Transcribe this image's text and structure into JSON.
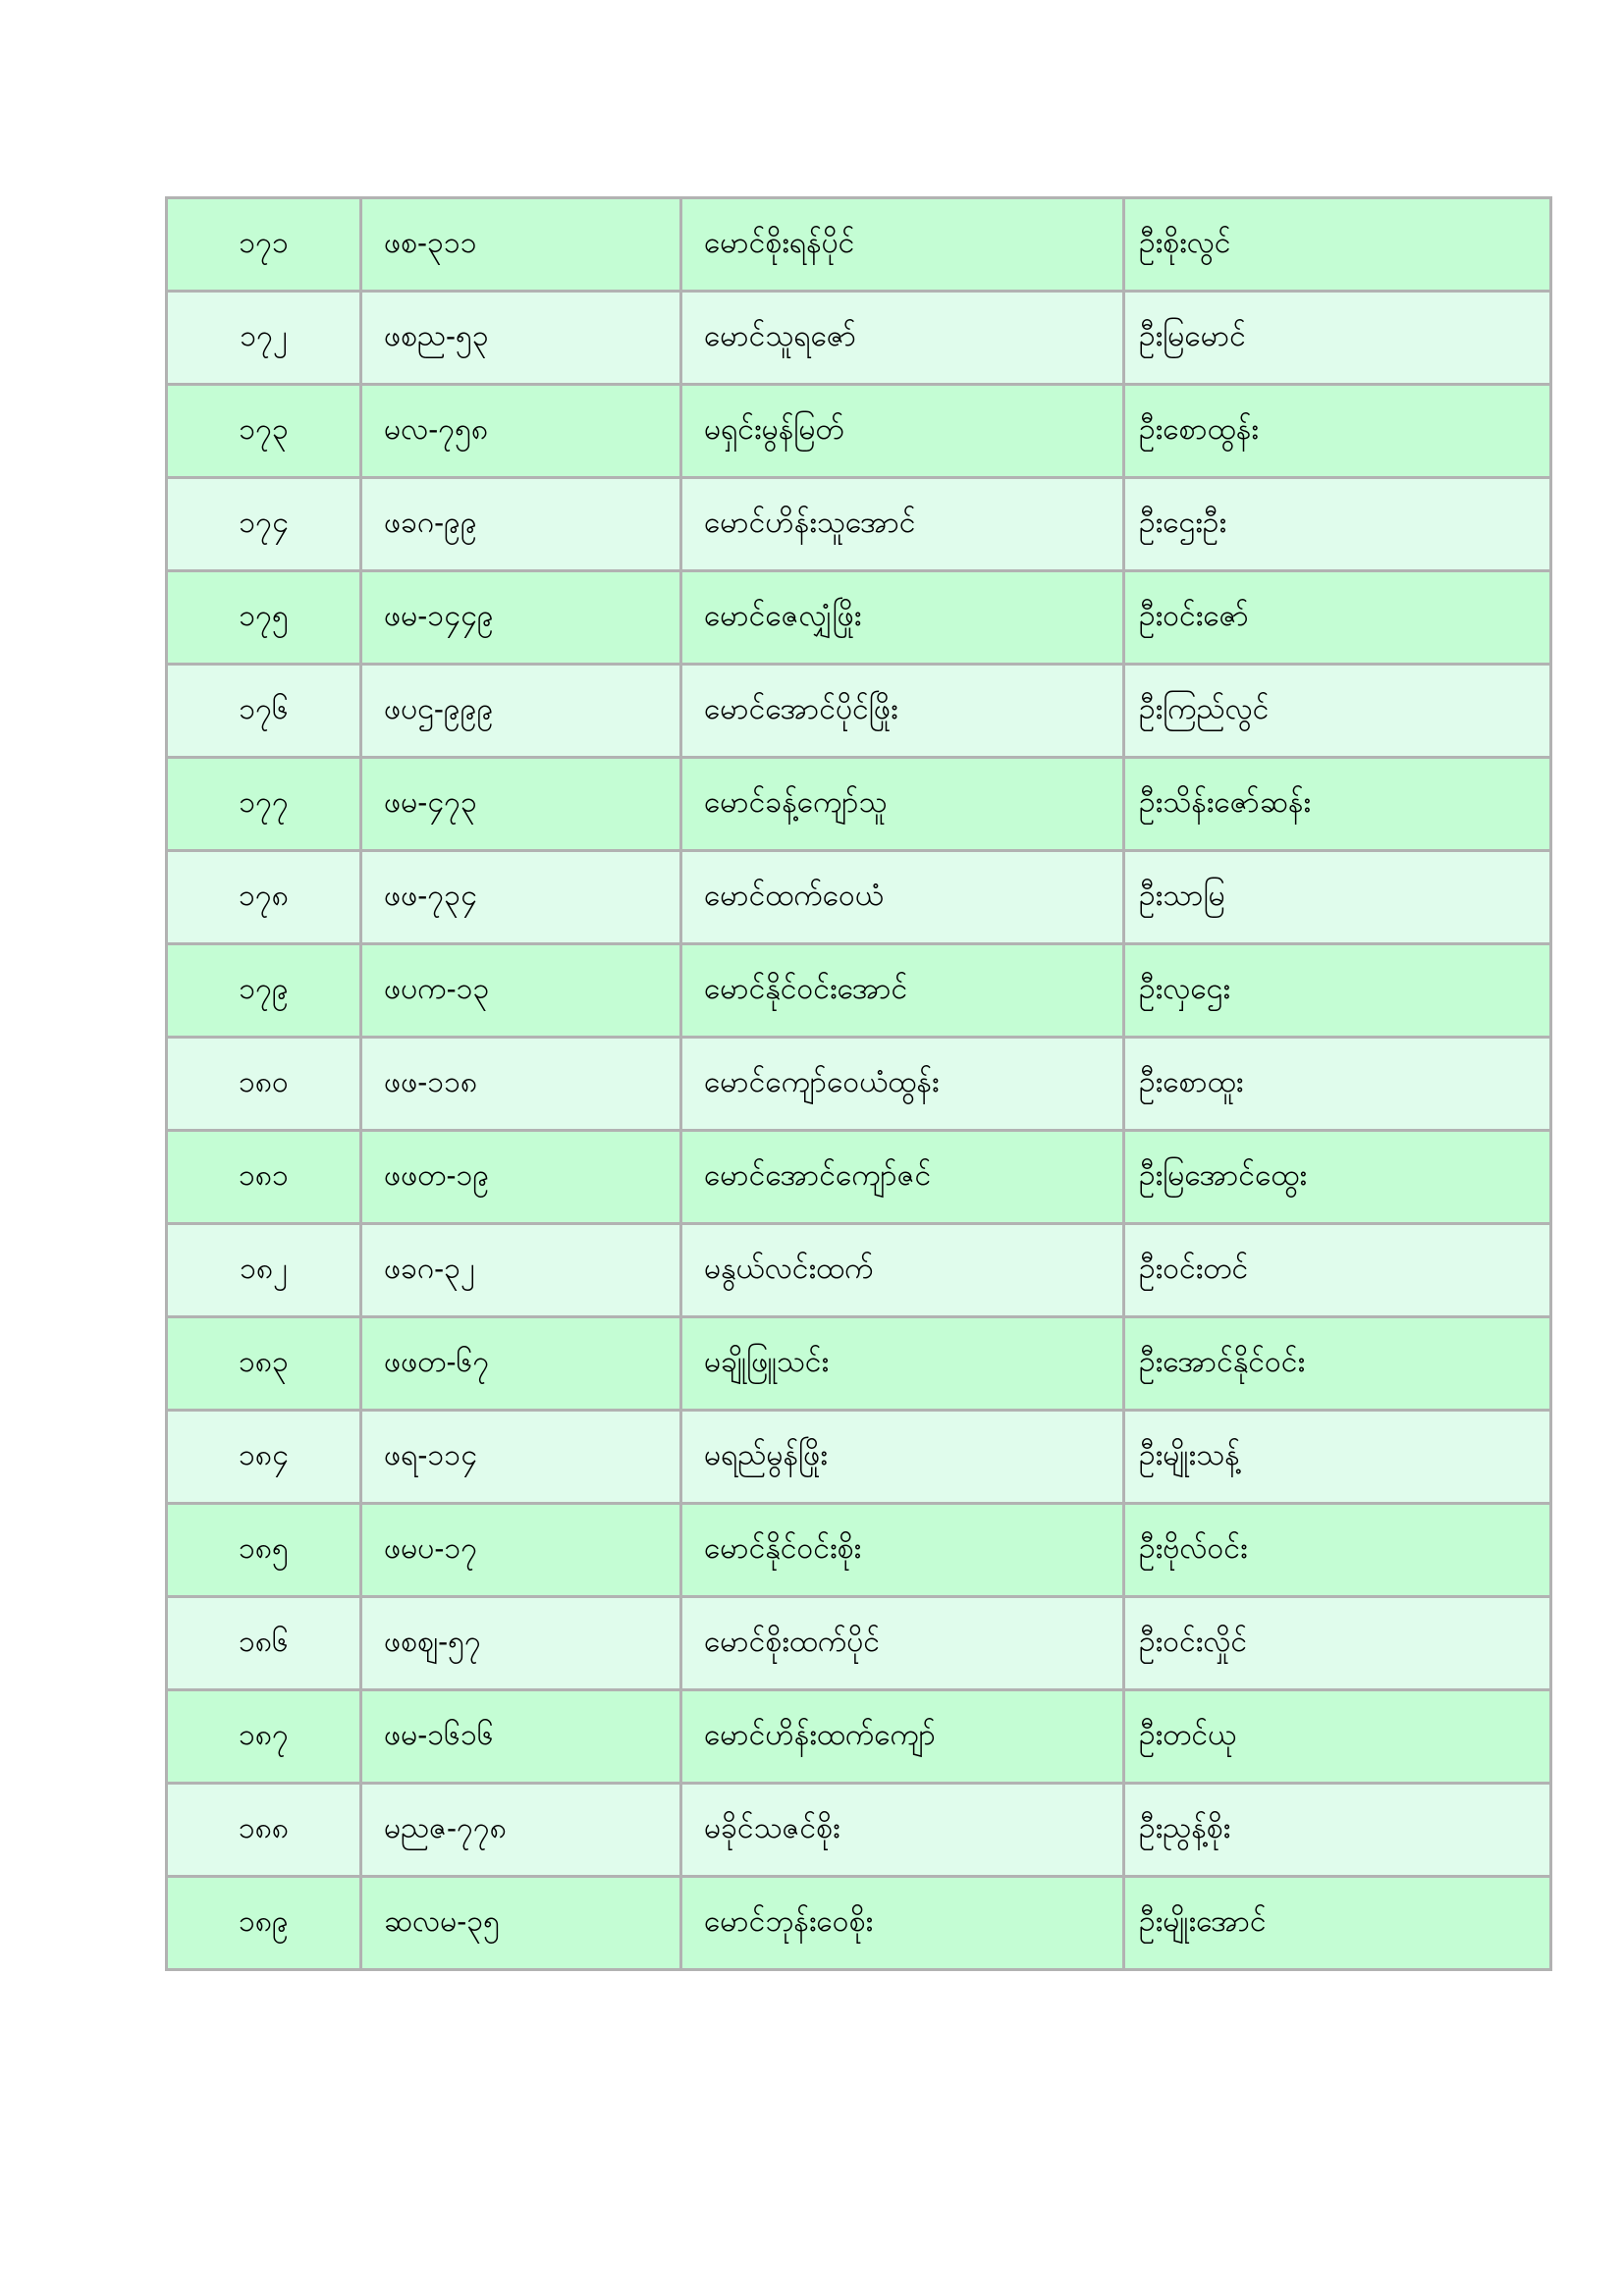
{
  "page": {
    "background_color": "#ffffff"
  },
  "table": {
    "description_colors": {
      "border_color": "#b2b2b2",
      "row_color_odd": "#c4fdd4",
      "row_color_even": "#e0fcec",
      "text_color": "#000000"
    },
    "rows": [
      {
        "no": "၁၇၁",
        "code": "ဖစ-၃၁၁",
        "name": "မောင်စိုးရန်ပိုင်",
        "parent": "ဦးစိုးလွင်"
      },
      {
        "no": "၁၇၂",
        "code": "ဖစည-၅၃",
        "name": "မောင်သူရဇော်",
        "parent": "ဦးမြမောင်"
      },
      {
        "no": "၁၇၃",
        "code": "မလ-၇၅၈",
        "name": "မရှင်းမွန်မြတ်",
        "parent": "ဦးစောထွန်း"
      },
      {
        "no": "၁၇၄",
        "code": "ဖခဂ-၉၉",
        "name": "မောင်ဟိန်းသူအောင်",
        "parent": "ဦးဌေးဦး"
      },
      {
        "no": "၁၇၅",
        "code": "ဖမ-၁၄၄၉",
        "name": "မောင်ဇေလျှံဖြိုး",
        "parent": "ဦးဝင်းဇော်"
      },
      {
        "no": "၁၇၆",
        "code": "ဖပဌ-၉၉၉",
        "name": "မောင်အောင်ပိုင်ဖြိုး",
        "parent": "ဦးကြည်လွင်"
      },
      {
        "no": "၁၇၇",
        "code": "ဖမ-၄၇၃",
        "name": "မောင်ခန့်ကျော်သူ",
        "parent": "ဦးသိန်းဇော်ဆန်း"
      },
      {
        "no": "၁၇၈",
        "code": "ဖဖ-၇၃၄",
        "name": "မောင်ထက်ဝေယံ",
        "parent": "ဦးသာမြ"
      },
      {
        "no": "၁၇၉",
        "code": "ဖပက-၁၃",
        "name": "မောင်နိုင်ဝင်းအောင်",
        "parent": "ဦးလှဌေး"
      },
      {
        "no": "၁၈၀",
        "code": "ဖဖ-၁၁၈",
        "name": "မောင်ကျော်ဝေယံထွန်း",
        "parent": "ဦးစောထူး"
      },
      {
        "no": "၁၈၁",
        "code": "ဖဖတ-၁၉",
        "name": "မောင်အောင်ကျော်ဇင်",
        "parent": "ဦးမြအောင်ထွေး"
      },
      {
        "no": "၁၈၂",
        "code": "ဖခဂ-၃၂",
        "name": "မနွယ်လင်းထက်",
        "parent": "ဦးဝင်းတင်"
      },
      {
        "no": "၁၈၃",
        "code": "ဖဖတ-၆၇",
        "name": "မချိုဖြူသင်း",
        "parent": "ဦးအောင်နိုင်ဝင်း"
      },
      {
        "no": "၁၈၄",
        "code": "ဖရ-၁၁၄",
        "name": "မရည်မွန်ဖြိုး",
        "parent": "ဦးမျိုးသန့်"
      },
      {
        "no": "၁၈၅",
        "code": "ဖမပ-၁၇",
        "name": "မောင်နိုင်ဝင်းစိုး",
        "parent": "ဦးဗိုလ်ဝင်း"
      },
      {
        "no": "၁၈၆",
        "code": "ဖစဈ-၅၇",
        "name": "မောင်စိုးထက်ပိုင်",
        "parent": "ဦးဝင်းလှိုင်"
      },
      {
        "no": "၁၈၇",
        "code": "ဖမ-၁၆၁၆",
        "name": "မောင်ဟိန်းထက်ကျော်",
        "parent": "ဦးတင်ယု"
      },
      {
        "no": "၁၈၈",
        "code": "မညဇ-၇၇၈",
        "name": "မခိုင်သဇင်စိုး",
        "parent": "ဦးညွန့်စိုး"
      },
      {
        "no": "၁၈၉",
        "code": "ဆလမ-၃၅",
        "name": "မောင်ဘုန်းဝေစိုး",
        "parent": "ဦးမျိုးအောင်"
      }
    ]
  }
}
